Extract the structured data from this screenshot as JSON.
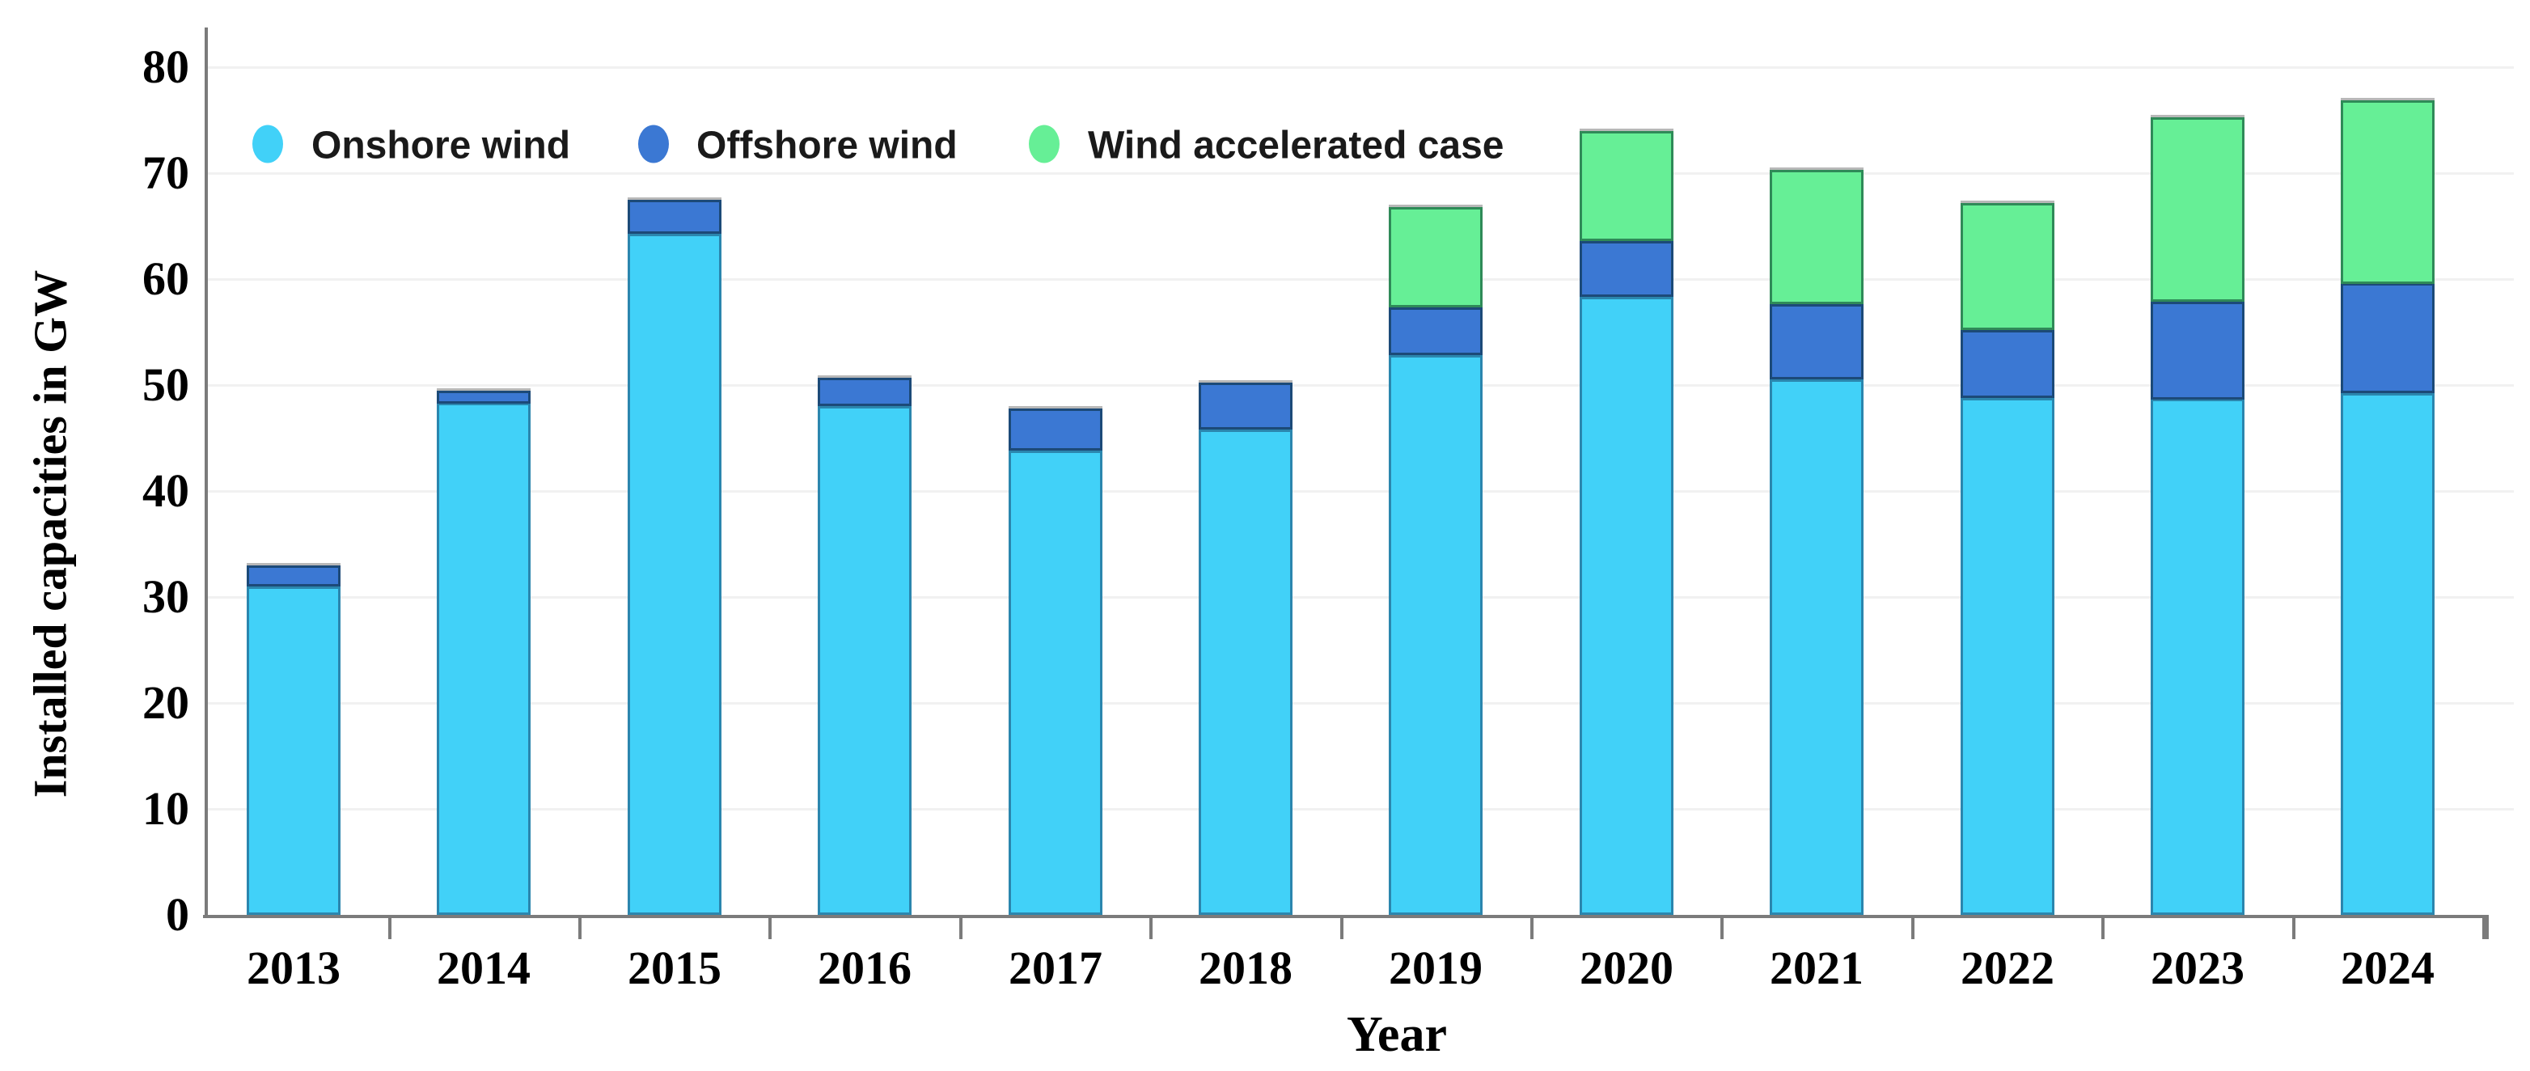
{
  "chart_data": {
    "type": "bar",
    "stacked": true,
    "title": "",
    "xlabel": "Year",
    "ylabel": "Installed capacities in GW",
    "ylim": [
      0,
      85
    ],
    "yticks": [
      0,
      10,
      20,
      30,
      40,
      50,
      60,
      70,
      80
    ],
    "grid": true,
    "legend_position": "top-left",
    "categories": [
      "2013",
      "2014",
      "2015",
      "2016",
      "2017",
      "2018",
      "2019",
      "2020",
      "2021",
      "2022",
      "2023",
      "2024"
    ],
    "series": [
      {
        "name": "Onshore wind",
        "color": "#41d1f8",
        "border_color": "#2b86ae",
        "values": [
          31.0,
          48.3,
          64.3,
          48.0,
          43.8,
          45.8,
          52.8,
          58.3,
          50.5,
          48.8,
          48.7,
          49.2
        ]
      },
      {
        "name": "Offshore wind",
        "color": "#3b78d3",
        "border_color": "#1c4a78",
        "values": [
          2.0,
          1.2,
          3.2,
          2.7,
          4.0,
          4.4,
          4.5,
          5.3,
          7.1,
          6.4,
          9.2,
          10.4
        ]
      },
      {
        "name": "Wind accelerated case",
        "color": "#66ef96",
        "border_color": "#2f8a58",
        "values": [
          0,
          0,
          0,
          0,
          0,
          0,
          9.5,
          10.4,
          12.7,
          12.0,
          17.4,
          17.3
        ]
      }
    ],
    "stacked_totals": [
      33.0,
      49.5,
      67.5,
      50.7,
      47.8,
      50.2,
      66.8,
      74.0,
      70.3,
      67.2,
      75.3,
      76.9
    ]
  },
  "colors": {
    "axis": "#7b7b7b",
    "gridline": "#f1f1f1",
    "text": "#000000",
    "background": "#ffffff"
  }
}
